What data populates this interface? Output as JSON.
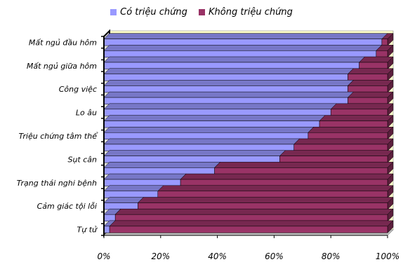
{
  "chart_data": {
    "type": "bar",
    "orientation": "horizontal",
    "stacked": "percent",
    "style": "3d",
    "categories": [
      "Mất ngủ đầu hôm",
      "",
      "Mất ngủ giữa hôm",
      "",
      "Công việc",
      "",
      "Lo âu",
      "",
      "Triệu chứng tâm thể",
      "",
      "Sụt cân",
      "",
      "Trạng thái nghi bệnh",
      "",
      "Cảm giác tội lỗi",
      "",
      "Tự tử"
    ],
    "series": [
      {
        "name": "Có triệu chứng",
        "color": "#9999ff",
        "values": [
          98,
          96,
          90,
          86,
          86,
          86,
          80,
          76,
          72,
          67,
          62,
          39,
          27,
          19,
          12,
          4,
          2
        ]
      },
      {
        "name": "Không triệu chứng",
        "color": "#993366",
        "values": [
          2,
          4,
          10,
          14,
          14,
          14,
          20,
          24,
          28,
          33,
          38,
          61,
          73,
          81,
          88,
          96,
          98
        ]
      }
    ],
    "x_ticks": [
      "0%",
      "20%",
      "40%",
      "60%",
      "80%",
      "100%"
    ],
    "xlim": [
      0,
      100
    ],
    "wall_color": "#ffffcc",
    "legend_position": "top",
    "grid": false
  }
}
